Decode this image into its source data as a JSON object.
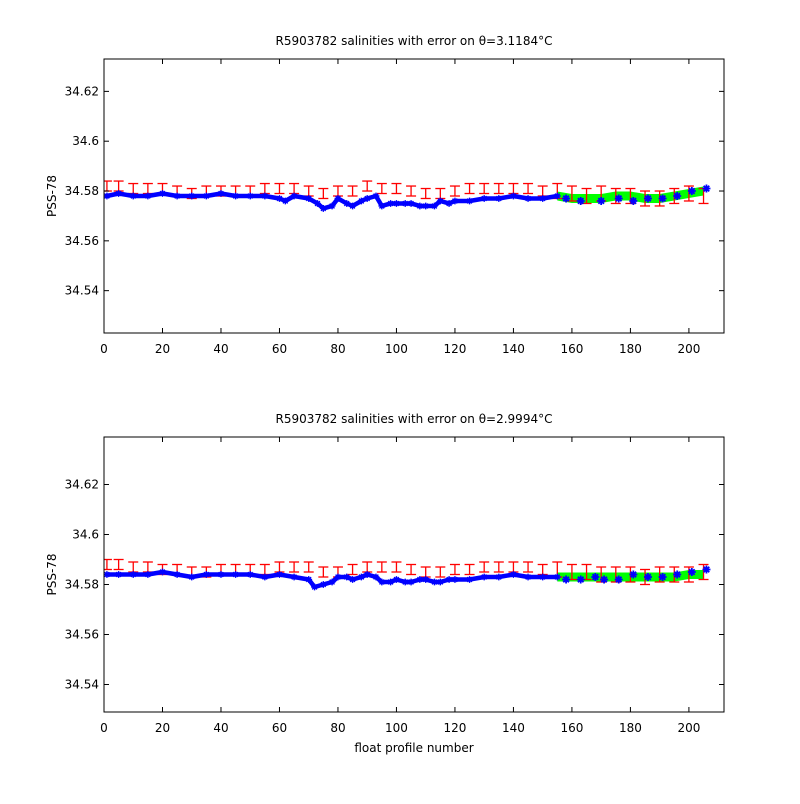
{
  "chart_data": [
    {
      "type": "line",
      "title_prefix": "R5903782 salinities with error on θ=3.1184",
      "title_suffix": "°C",
      "ylabel": "PSS-78",
      "xlabel": "",
      "xlim": [
        0,
        212
      ],
      "ylim": [
        34.523,
        34.633
      ],
      "x_ticks": [
        0,
        20,
        40,
        60,
        80,
        100,
        120,
        140,
        160,
        180,
        200
      ],
      "y_ticks": [
        34.54,
        34.56,
        34.58,
        34.6,
        34.62
      ],
      "grid": false,
      "colors": {
        "measured": "#0000ff",
        "mapped_error": "#ff0000",
        "calibrated": "#00ff00"
      },
      "series": [
        {
          "x": [
            1,
            5,
            10,
            15,
            20,
            25,
            30,
            35,
            40,
            45,
            50,
            55,
            60,
            62,
            65,
            70,
            73,
            75,
            78,
            80,
            83,
            85,
            88,
            90,
            93,
            95,
            98,
            100,
            103,
            105,
            108,
            110,
            113,
            115,
            118,
            120,
            125,
            130,
            135,
            140,
            145,
            150,
            155
          ],
          "values": [
            34.578,
            34.579,
            34.578,
            34.578,
            34.579,
            34.578,
            34.578,
            34.578,
            34.579,
            34.578,
            34.578,
            34.578,
            34.577,
            34.576,
            34.578,
            34.577,
            34.575,
            34.573,
            34.574,
            34.577,
            34.575,
            34.574,
            34.576,
            34.577,
            34.578,
            34.574,
            34.575,
            34.575,
            34.575,
            34.575,
            34.574,
            34.574,
            34.574,
            34.576,
            34.575,
            34.576,
            34.576,
            34.577,
            34.577,
            34.578,
            34.577,
            34.577,
            34.578
          ]
        },
        {
          "x": [
            1,
            5,
            10,
            15,
            20,
            25,
            30,
            35,
            40,
            45,
            50,
            55,
            60,
            65,
            70,
            75,
            80,
            85,
            90,
            95,
            100,
            105,
            110,
            115,
            120,
            125,
            130,
            135,
            140,
            145,
            150,
            155,
            160,
            165,
            170,
            175,
            180,
            185,
            190,
            195,
            200,
            205
          ],
          "values": [
            34.582,
            34.582,
            34.581,
            34.581,
            34.581,
            34.58,
            34.579,
            34.58,
            34.58,
            34.58,
            34.58,
            34.581,
            34.581,
            34.581,
            34.58,
            34.579,
            34.58,
            34.58,
            34.582,
            34.581,
            34.581,
            34.58,
            34.579,
            34.579,
            34.58,
            34.581,
            34.581,
            34.581,
            34.581,
            34.581,
            34.58,
            34.58,
            34.579,
            34.578,
            34.579,
            34.578,
            34.578,
            34.577,
            34.577,
            34.578,
            34.579,
            34.578
          ],
          "err": [
            0.002,
            0.002,
            0.002,
            0.002,
            0.002,
            0.002,
            0.002,
            0.002,
            0.002,
            0.002,
            0.002,
            0.002,
            0.002,
            0.002,
            0.002,
            0.002,
            0.002,
            0.002,
            0.002,
            0.002,
            0.002,
            0.002,
            0.002,
            0.002,
            0.002,
            0.002,
            0.002,
            0.002,
            0.002,
            0.002,
            0.002,
            0.003,
            0.003,
            0.003,
            0.003,
            0.003,
            0.003,
            0.003,
            0.003,
            0.003,
            0.003,
            0.003
          ]
        },
        {
          "x": [
            155,
            160,
            165,
            170,
            175,
            180,
            185,
            190,
            195,
            200,
            205
          ],
          "values": [
            34.578,
            34.577,
            34.577,
            34.577,
            34.578,
            34.578,
            34.577,
            34.577,
            34.578,
            34.579,
            34.58
          ]
        },
        {
          "x": [
            158,
            163,
            170,
            176,
            181,
            186,
            191,
            196,
            201,
            206
          ],
          "values": [
            34.577,
            34.576,
            34.576,
            34.577,
            34.576,
            34.577,
            34.577,
            34.578,
            34.58,
            34.581
          ]
        }
      ]
    },
    {
      "type": "line",
      "title_prefix": "R5903782 salinities with error on θ=2.9994",
      "title_suffix": "°C",
      "ylabel": "PSS-78",
      "xlabel": "float profile number",
      "xlim": [
        0,
        212
      ],
      "ylim": [
        34.529,
        34.639
      ],
      "x_ticks": [
        0,
        20,
        40,
        60,
        80,
        100,
        120,
        140,
        160,
        180,
        200
      ],
      "y_ticks": [
        34.54,
        34.56,
        34.58,
        34.6,
        34.62
      ],
      "grid": false,
      "colors": {
        "measured": "#0000ff",
        "mapped_error": "#ff0000",
        "calibrated": "#00ff00"
      },
      "series": [
        {
          "x": [
            1,
            5,
            10,
            15,
            20,
            25,
            30,
            35,
            40,
            45,
            50,
            55,
            60,
            65,
            70,
            72,
            75,
            78,
            80,
            83,
            85,
            88,
            90,
            93,
            95,
            98,
            100,
            103,
            105,
            108,
            110,
            113,
            115,
            118,
            120,
            125,
            130,
            135,
            140,
            145,
            150,
            155
          ],
          "values": [
            34.584,
            34.584,
            34.584,
            34.584,
            34.585,
            34.584,
            34.583,
            34.584,
            34.584,
            34.584,
            34.584,
            34.583,
            34.584,
            34.583,
            34.582,
            34.579,
            34.58,
            34.581,
            34.583,
            34.583,
            34.582,
            34.583,
            34.584,
            34.583,
            34.581,
            34.581,
            34.582,
            34.581,
            34.581,
            34.582,
            34.582,
            34.581,
            34.581,
            34.582,
            34.582,
            34.582,
            34.583,
            34.583,
            34.584,
            34.583,
            34.583,
            34.583
          ]
        },
        {
          "x": [
            1,
            5,
            10,
            15,
            20,
            25,
            30,
            35,
            40,
            45,
            50,
            55,
            60,
            65,
            70,
            75,
            80,
            85,
            90,
            95,
            100,
            105,
            110,
            115,
            120,
            125,
            130,
            135,
            140,
            145,
            150,
            155,
            160,
            165,
            170,
            175,
            180,
            185,
            190,
            195,
            200,
            205
          ],
          "values": [
            34.588,
            34.588,
            34.587,
            34.587,
            34.586,
            34.586,
            34.585,
            34.585,
            34.586,
            34.586,
            34.586,
            34.586,
            34.587,
            34.587,
            34.587,
            34.585,
            34.585,
            34.586,
            34.587,
            34.587,
            34.587,
            34.586,
            34.585,
            34.585,
            34.586,
            34.586,
            34.587,
            34.587,
            34.587,
            34.587,
            34.586,
            34.586,
            34.585,
            34.585,
            34.584,
            34.584,
            34.584,
            34.583,
            34.584,
            34.584,
            34.584,
            34.585
          ],
          "err": [
            0.002,
            0.002,
            0.002,
            0.002,
            0.002,
            0.002,
            0.002,
            0.002,
            0.002,
            0.002,
            0.002,
            0.002,
            0.002,
            0.002,
            0.002,
            0.002,
            0.002,
            0.002,
            0.002,
            0.002,
            0.002,
            0.002,
            0.002,
            0.002,
            0.002,
            0.002,
            0.002,
            0.002,
            0.002,
            0.002,
            0.002,
            0.003,
            0.003,
            0.003,
            0.003,
            0.003,
            0.003,
            0.003,
            0.003,
            0.003,
            0.003,
            0.003
          ]
        },
        {
          "x": [
            155,
            160,
            165,
            170,
            175,
            180,
            185,
            190,
            195,
            200,
            205
          ],
          "values": [
            34.583,
            34.583,
            34.583,
            34.583,
            34.583,
            34.583,
            34.583,
            34.583,
            34.583,
            34.584,
            34.584
          ]
        },
        {
          "x": [
            158,
            163,
            168,
            171,
            176,
            181,
            186,
            191,
            196,
            201,
            206
          ],
          "values": [
            34.582,
            34.582,
            34.583,
            34.582,
            34.582,
            34.584,
            34.583,
            34.583,
            34.584,
            34.585,
            34.586
          ]
        }
      ]
    }
  ]
}
